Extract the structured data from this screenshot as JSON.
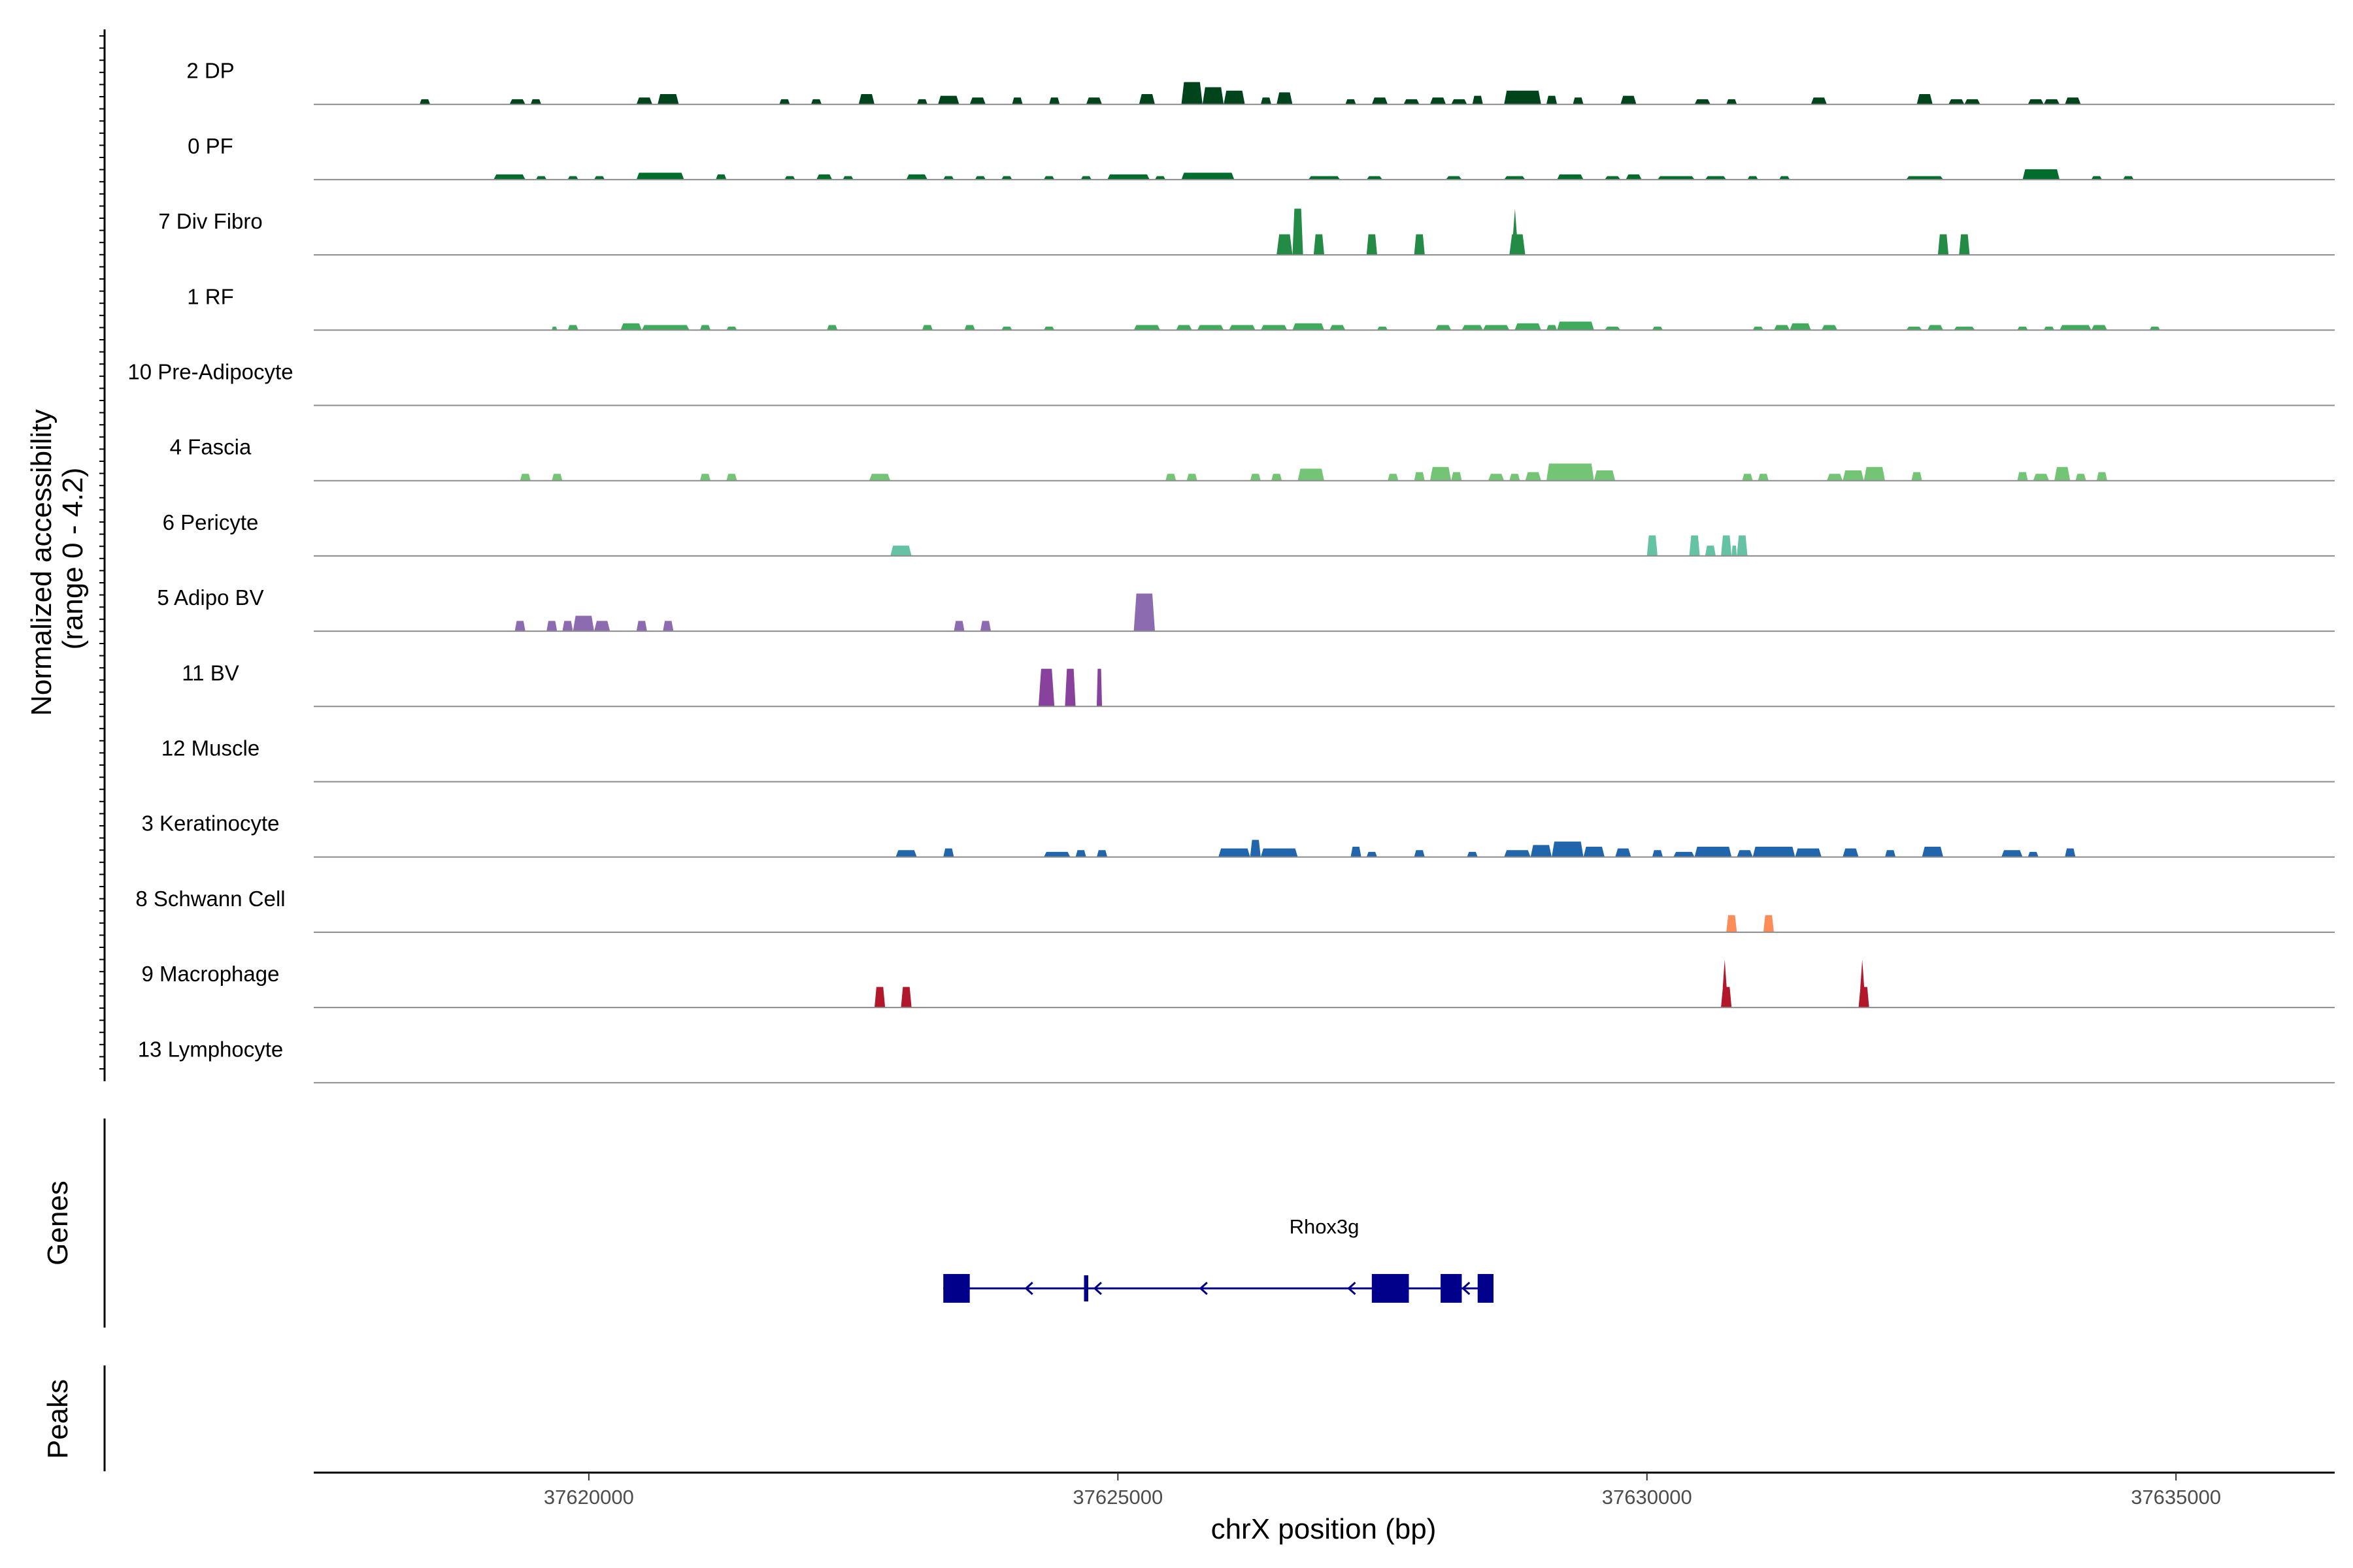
{
  "chart_data": {
    "type": "area",
    "ylabel": "Normalized accessibility\n(range 0 - 4.2)",
    "ylim": [
      0,
      4.2
    ],
    "xlabel": "chrX position (bp)",
    "xlim": [
      37617400,
      37636500
    ],
    "x_ticks": [
      37620000,
      37625000,
      37630000,
      37635000
    ],
    "x_tick_labels": [
      "37620000",
      "37625000",
      "37630000",
      "37635000"
    ],
    "tracks": [
      {
        "name": "2 DP",
        "color": "#00441b",
        "peaks": [
          [
            37618400,
            37618500,
            0.3
          ],
          [
            37619250,
            37619400,
            0.3
          ],
          [
            37619450,
            37619550,
            0.3
          ],
          [
            37620450,
            37620600,
            0.4
          ],
          [
            37620650,
            37620850,
            0.6
          ],
          [
            37621800,
            37621900,
            0.3
          ],
          [
            37622100,
            37622200,
            0.3
          ],
          [
            37622550,
            37622700,
            0.6
          ],
          [
            37623100,
            37623200,
            0.3
          ],
          [
            37623300,
            37623500,
            0.5
          ],
          [
            37623600,
            37623750,
            0.4
          ],
          [
            37624000,
            37624100,
            0.4
          ],
          [
            37624350,
            37624450,
            0.4
          ],
          [
            37624700,
            37624850,
            0.4
          ],
          [
            37625200,
            37625350,
            0.6
          ],
          [
            37625600,
            37625800,
            1.3
          ],
          [
            37625800,
            37626000,
            1.0
          ],
          [
            37626000,
            37626200,
            0.8
          ],
          [
            37626350,
            37626450,
            0.4
          ],
          [
            37626500,
            37626650,
            0.7
          ],
          [
            37627150,
            37627250,
            0.3
          ],
          [
            37627400,
            37627550,
            0.4
          ],
          [
            37627700,
            37627850,
            0.3
          ],
          [
            37627950,
            37628100,
            0.4
          ],
          [
            37628150,
            37628300,
            0.3
          ],
          [
            37628350,
            37628450,
            0.5
          ],
          [
            37628650,
            37629000,
            0.8
          ],
          [
            37629050,
            37629150,
            0.5
          ],
          [
            37629300,
            37629400,
            0.4
          ],
          [
            37629750,
            37629900,
            0.5
          ],
          [
            37630450,
            37630600,
            0.3
          ],
          [
            37630750,
            37630850,
            0.3
          ],
          [
            37631550,
            37631700,
            0.4
          ],
          [
            37632550,
            37632700,
            0.6
          ],
          [
            37632850,
            37633000,
            0.3
          ],
          [
            37633000,
            37633150,
            0.3
          ],
          [
            37633600,
            37633750,
            0.3
          ],
          [
            37633750,
            37633900,
            0.3
          ],
          [
            37633950,
            37634100,
            0.4
          ]
        ]
      },
      {
        "name": "0 PF",
        "color": "#006d2c",
        "peaks": [
          [
            37619100,
            37619400,
            0.3
          ],
          [
            37619500,
            37619600,
            0.2
          ],
          [
            37619800,
            37619900,
            0.2
          ],
          [
            37620050,
            37620150,
            0.2
          ],
          [
            37620450,
            37620900,
            0.4
          ],
          [
            37621200,
            37621300,
            0.3
          ],
          [
            37621850,
            37621950,
            0.2
          ],
          [
            37622150,
            37622300,
            0.3
          ],
          [
            37622400,
            37622500,
            0.2
          ],
          [
            37623000,
            37623200,
            0.3
          ],
          [
            37623350,
            37623450,
            0.2
          ],
          [
            37623650,
            37623750,
            0.2
          ],
          [
            37623900,
            37624000,
            0.2
          ],
          [
            37624300,
            37624400,
            0.2
          ],
          [
            37624650,
            37624750,
            0.2
          ],
          [
            37624900,
            37625300,
            0.3
          ],
          [
            37625350,
            37625450,
            0.2
          ],
          [
            37625600,
            37626100,
            0.4
          ],
          [
            37626800,
            37627100,
            0.2
          ],
          [
            37627350,
            37627500,
            0.2
          ],
          [
            37628100,
            37628250,
            0.2
          ],
          [
            37628650,
            37628850,
            0.2
          ],
          [
            37629150,
            37629400,
            0.3
          ],
          [
            37629600,
            37629750,
            0.2
          ],
          [
            37629800,
            37629950,
            0.3
          ],
          [
            37630100,
            37630450,
            0.2
          ],
          [
            37630550,
            37630750,
            0.2
          ],
          [
            37630950,
            37631050,
            0.2
          ],
          [
            37631250,
            37631350,
            0.2
          ],
          [
            37632450,
            37632800,
            0.2
          ],
          [
            37633550,
            37633900,
            0.6
          ],
          [
            37634200,
            37634300,
            0.2
          ],
          [
            37634500,
            37634600,
            0.2
          ]
        ]
      },
      {
        "name": "7 Div Fibro",
        "color": "#238b45",
        "peaks": [
          [
            37626500,
            37626650,
            1.2
          ],
          [
            37626650,
            37626750,
            2.7
          ],
          [
            37626850,
            37626950,
            1.2
          ],
          [
            37627350,
            37627450,
            1.2
          ],
          [
            37627800,
            37627900,
            1.2
          ],
          [
            37628700,
            37628850,
            1.2,
            2.7
          ],
          [
            37632750,
            37632850,
            1.2
          ],
          [
            37632950,
            37633050,
            1.2
          ]
        ]
      },
      {
        "name": "1 RF",
        "color": "#41ab5d",
        "peaks": [
          [
            37619650,
            37619700,
            0.2
          ],
          [
            37619800,
            37619900,
            0.3
          ],
          [
            37620300,
            37620500,
            0.4
          ],
          [
            37620500,
            37620950,
            0.3
          ],
          [
            37621050,
            37621150,
            0.3
          ],
          [
            37621300,
            37621400,
            0.2
          ],
          [
            37622250,
            37622350,
            0.3
          ],
          [
            37623150,
            37623250,
            0.3
          ],
          [
            37623550,
            37623650,
            0.3
          ],
          [
            37623900,
            37624000,
            0.2
          ],
          [
            37624300,
            37624400,
            0.2
          ],
          [
            37625150,
            37625400,
            0.3
          ],
          [
            37625550,
            37625700,
            0.3
          ],
          [
            37625750,
            37626000,
            0.3
          ],
          [
            37626050,
            37626300,
            0.3
          ],
          [
            37626350,
            37626600,
            0.3
          ],
          [
            37626650,
            37626950,
            0.4
          ],
          [
            37627000,
            37627150,
            0.3
          ],
          [
            37627450,
            37627550,
            0.2
          ],
          [
            37628000,
            37628150,
            0.3
          ],
          [
            37628250,
            37628450,
            0.3
          ],
          [
            37628450,
            37628700,
            0.3
          ],
          [
            37628750,
            37629000,
            0.4
          ],
          [
            37629050,
            37629150,
            0.3
          ],
          [
            37629150,
            37629500,
            0.5
          ],
          [
            37629600,
            37629750,
            0.2
          ],
          [
            37630050,
            37630150,
            0.2
          ],
          [
            37631000,
            37631100,
            0.2
          ],
          [
            37631200,
            37631350,
            0.3
          ],
          [
            37631350,
            37631550,
            0.4
          ],
          [
            37631650,
            37631800,
            0.3
          ],
          [
            37632450,
            37632600,
            0.2
          ],
          [
            37632650,
            37632800,
            0.3
          ],
          [
            37632900,
            37633100,
            0.2
          ],
          [
            37633500,
            37633600,
            0.2
          ],
          [
            37633750,
            37633850,
            0.2
          ],
          [
            37633900,
            37634200,
            0.3
          ],
          [
            37634200,
            37634350,
            0.3
          ],
          [
            37634750,
            37634850,
            0.2
          ]
        ]
      },
      {
        "name": "10 Pre-Adipocyte",
        "color": "#74c476",
        "peaks": []
      },
      {
        "name": "4 Fascia",
        "color": "#74c476",
        "peaks": [
          [
            37619350,
            37619450,
            0.4
          ],
          [
            37619650,
            37619750,
            0.4
          ],
          [
            37621050,
            37621150,
            0.4
          ],
          [
            37621300,
            37621400,
            0.4
          ],
          [
            37622650,
            37622850,
            0.4
          ],
          [
            37625450,
            37625550,
            0.4
          ],
          [
            37625650,
            37625750,
            0.4
          ],
          [
            37626250,
            37626350,
            0.4
          ],
          [
            37626450,
            37626550,
            0.4
          ],
          [
            37626700,
            37626950,
            0.7
          ],
          [
            37627550,
            37627650,
            0.4
          ],
          [
            37627800,
            37627900,
            0.5
          ],
          [
            37627950,
            37628150,
            0.8
          ],
          [
            37628150,
            37628250,
            0.5
          ],
          [
            37628500,
            37628650,
            0.4
          ],
          [
            37628700,
            37628800,
            0.4
          ],
          [
            37628850,
            37629000,
            0.5
          ],
          [
            37629050,
            37629500,
            1.0
          ],
          [
            37629500,
            37629700,
            0.6
          ],
          [
            37630900,
            37631000,
            0.4
          ],
          [
            37631050,
            37631150,
            0.4
          ],
          [
            37631700,
            37631850,
            0.4
          ],
          [
            37631850,
            37632050,
            0.6
          ],
          [
            37632050,
            37632250,
            0.8
          ],
          [
            37632500,
            37632600,
            0.5
          ],
          [
            37633500,
            37633600,
            0.5
          ],
          [
            37633650,
            37633800,
            0.4
          ],
          [
            37633850,
            37634000,
            0.8
          ],
          [
            37634050,
            37634150,
            0.4
          ],
          [
            37634250,
            37634350,
            0.5
          ]
        ]
      },
      {
        "name": "6 Pericyte",
        "color": "#66c2a4",
        "peaks": [
          [
            37622850,
            37623050,
            0.6
          ],
          [
            37630000,
            37630100,
            1.2
          ],
          [
            37630400,
            37630500,
            1.2
          ],
          [
            37630550,
            37630650,
            0.6
          ],
          [
            37630700,
            37630800,
            1.2
          ],
          [
            37630800,
            37630850,
            0.6
          ],
          [
            37630850,
            37630950,
            1.2
          ]
        ]
      },
      {
        "name": "5 Adipo BV",
        "color": "#8c6bb1",
        "peaks": [
          [
            37619300,
            37619400,
            0.6
          ],
          [
            37619600,
            37619700,
            0.6
          ],
          [
            37619750,
            37619850,
            0.6
          ],
          [
            37619850,
            37620050,
            0.9
          ],
          [
            37620050,
            37620200,
            0.6
          ],
          [
            37620450,
            37620550,
            0.6
          ],
          [
            37620700,
            37620800,
            0.6
          ],
          [
            37623450,
            37623550,
            0.6
          ],
          [
            37623700,
            37623800,
            0.6
          ],
          [
            37625150,
            37625350,
            2.2
          ]
        ]
      },
      {
        "name": "11 BV",
        "color": "#88419d",
        "peaks": [
          [
            37624250,
            37624400,
            2.2
          ],
          [
            37624500,
            37624600,
            2.2
          ],
          [
            37624800,
            37624850,
            2.2
          ]
        ]
      },
      {
        "name": "12 Muscle",
        "color": "#2171b5",
        "peaks": []
      },
      {
        "name": "3 Keratinocyte",
        "color": "#2166ac",
        "peaks": [
          [
            37622900,
            37623100,
            0.4
          ],
          [
            37623350,
            37623450,
            0.5
          ],
          [
            37624300,
            37624550,
            0.3
          ],
          [
            37624600,
            37624700,
            0.4
          ],
          [
            37624800,
            37624900,
            0.4
          ],
          [
            37625950,
            37626250,
            0.5
          ],
          [
            37626250,
            37626350,
            1.0
          ],
          [
            37626350,
            37626700,
            0.5
          ],
          [
            37627200,
            37627300,
            0.6
          ],
          [
            37627350,
            37627450,
            0.3
          ],
          [
            37627800,
            37627900,
            0.4
          ],
          [
            37628300,
            37628400,
            0.3
          ],
          [
            37628650,
            37628900,
            0.4
          ],
          [
            37628900,
            37629100,
            0.7
          ],
          [
            37629100,
            37629400,
            0.9
          ],
          [
            37629400,
            37629600,
            0.6
          ],
          [
            37629700,
            37629850,
            0.5
          ],
          [
            37630050,
            37630150,
            0.4
          ],
          [
            37630250,
            37630450,
            0.3
          ],
          [
            37630450,
            37630800,
            0.6
          ],
          [
            37630850,
            37631000,
            0.4
          ],
          [
            37631000,
            37631400,
            0.6
          ],
          [
            37631400,
            37631650,
            0.5
          ],
          [
            37631850,
            37632000,
            0.5
          ],
          [
            37632250,
            37632350,
            0.4
          ],
          [
            37632600,
            37632800,
            0.6
          ],
          [
            37633350,
            37633550,
            0.4
          ],
          [
            37633600,
            37633700,
            0.3
          ],
          [
            37633950,
            37634050,
            0.5
          ]
        ]
      },
      {
        "name": "8 Schwann Cell",
        "color": "#fc8d59",
        "peaks": [
          [
            37630750,
            37630850,
            1.0
          ],
          [
            37631100,
            37631200,
            1.0
          ]
        ]
      },
      {
        "name": "9 Macrophage",
        "color": "#b2182b",
        "peaks": [
          [
            37622700,
            37622800,
            1.2
          ],
          [
            37622950,
            37623050,
            1.2
          ],
          [
            37630700,
            37630800,
            1.2,
            2.8
          ],
          [
            37632000,
            37632100,
            1.2,
            2.8
          ]
        ]
      },
      {
        "name": "13 Lymphocyte",
        "color": "#b2182b",
        "peaks": []
      }
    ],
    "genes_label": "Genes",
    "peaks_label": "Peaks",
    "gene": {
      "name": "Rhox3g",
      "color": "#00008b",
      "strand": "-",
      "start": 37623350,
      "end": 37628550,
      "exons": [
        [
          37623350,
          37623600
        ],
        [
          37624680,
          37624720
        ],
        [
          37627400,
          37627750
        ],
        [
          37628050,
          37628250
        ],
        [
          37628400,
          37628550
        ]
      ],
      "arrows": [
        37624150,
        37624800,
        37625800,
        37627200,
        37628280
      ]
    }
  }
}
